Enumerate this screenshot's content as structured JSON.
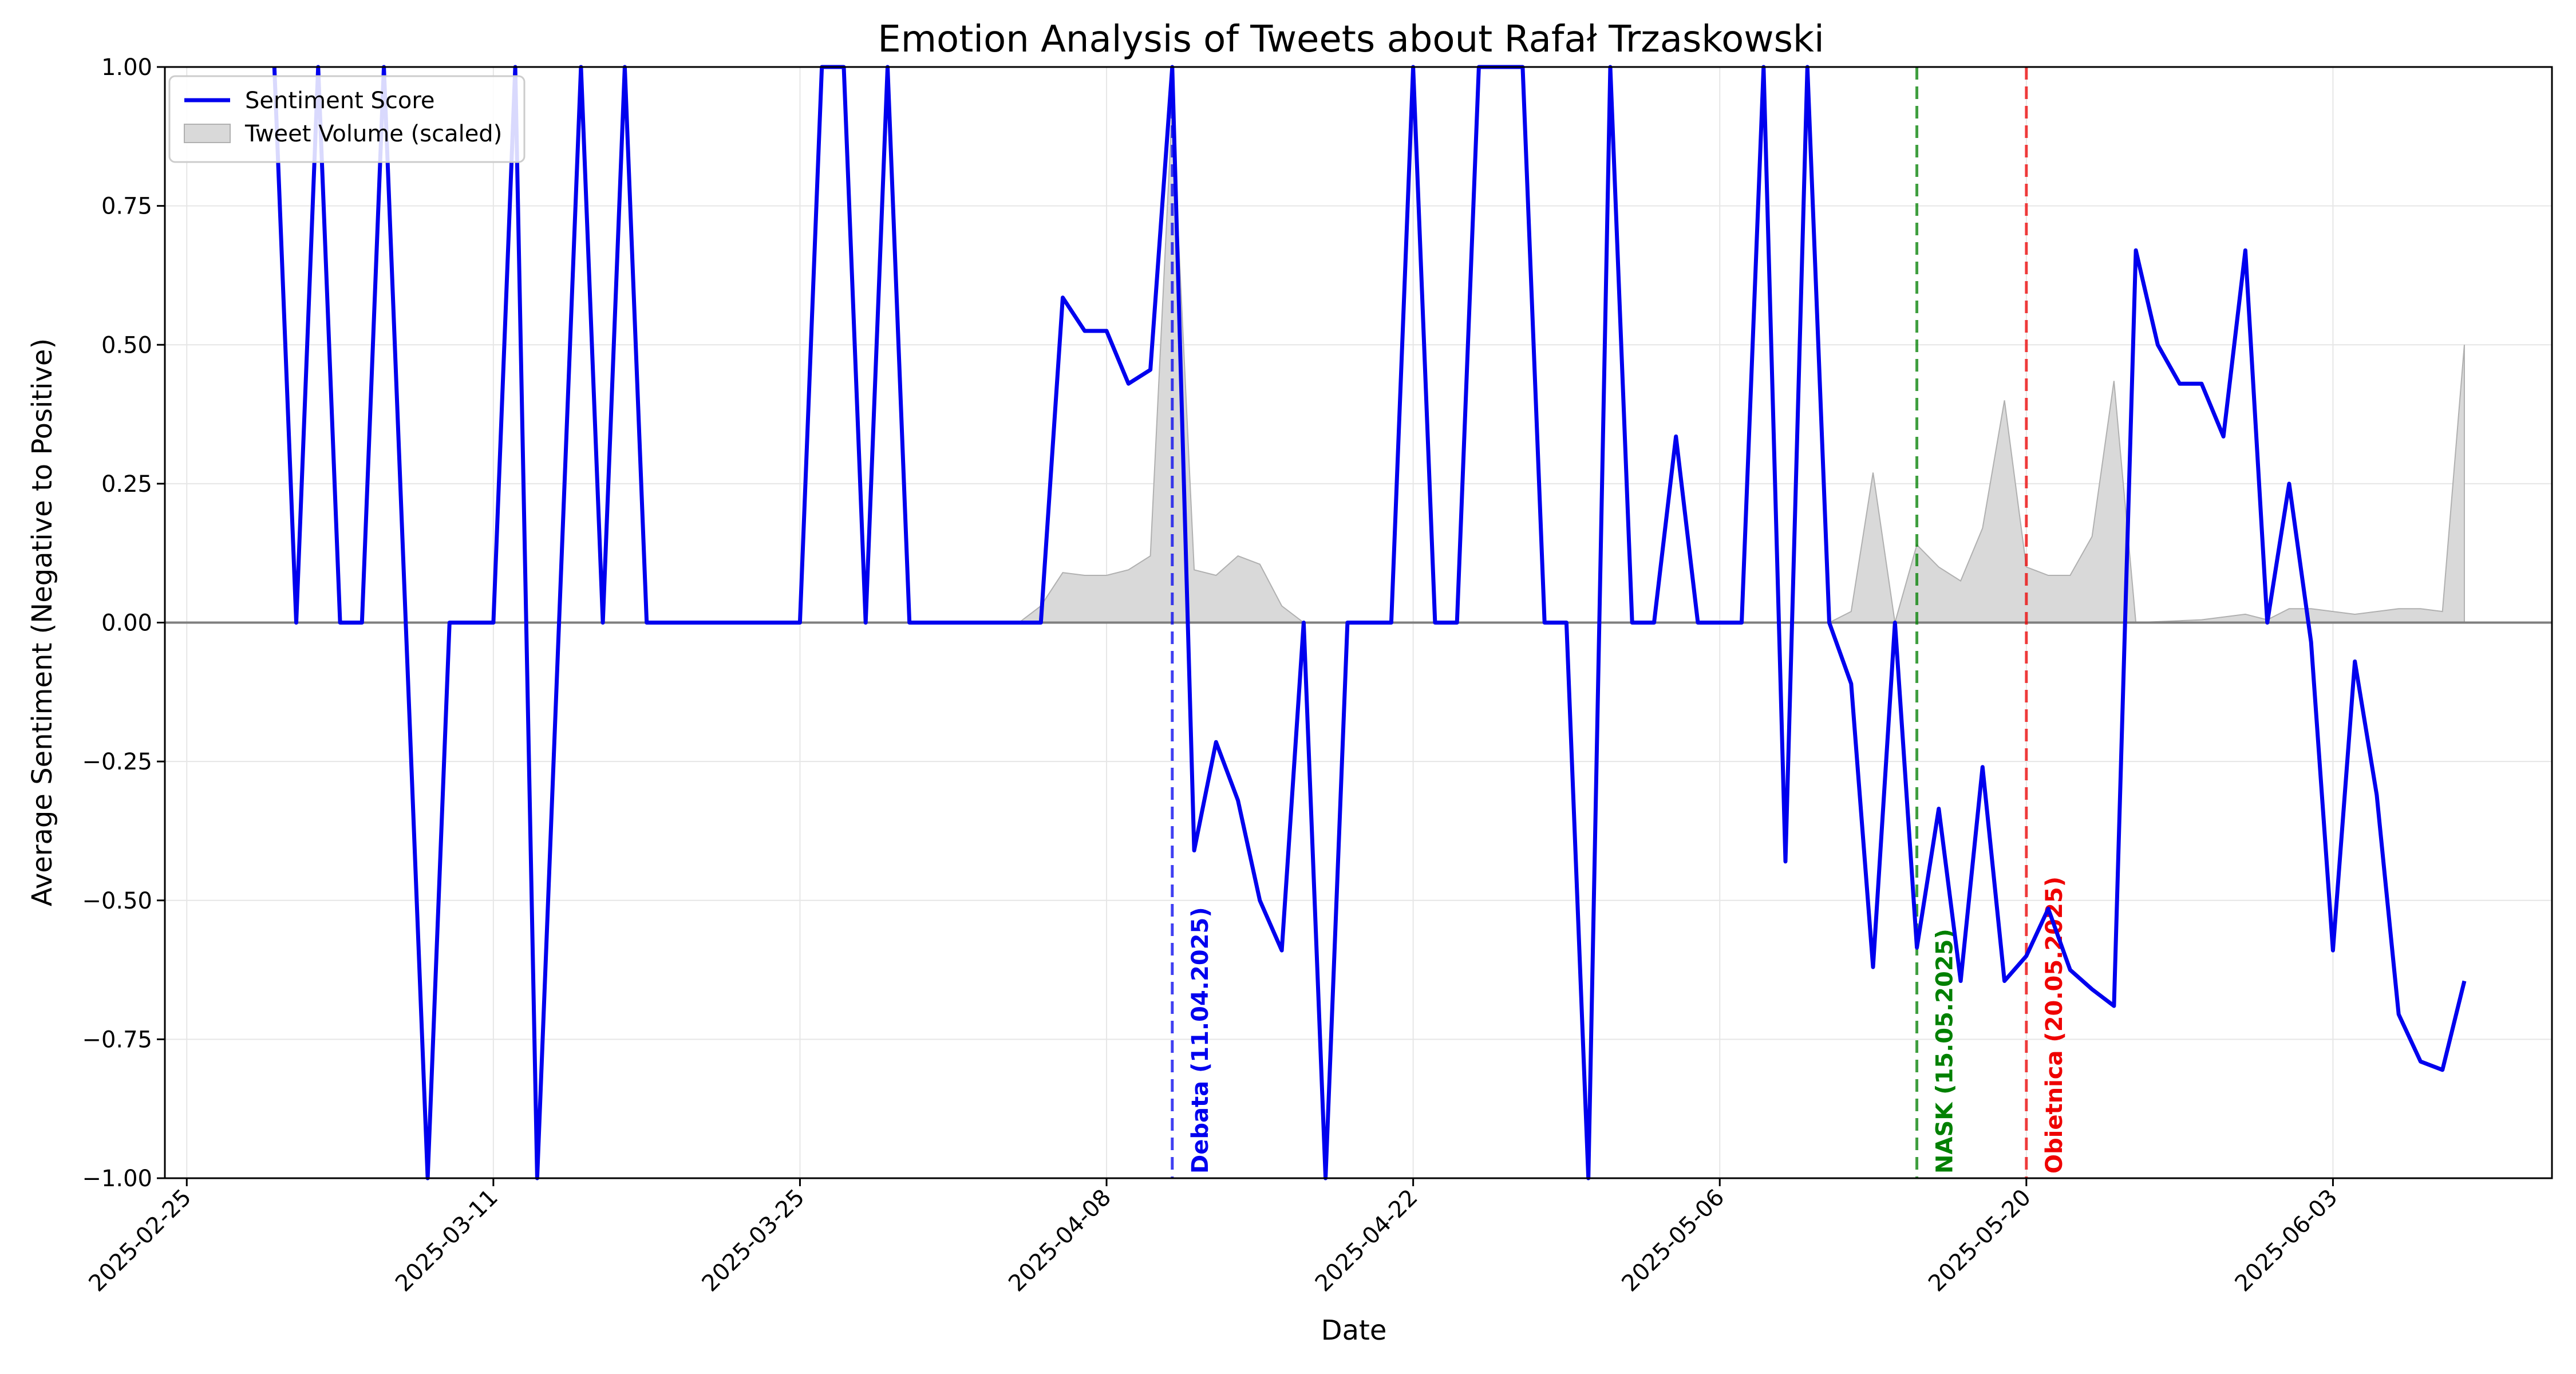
{
  "chart_data": {
    "type": "line",
    "title": "Emotion Analysis of Tweets about Rafał Trzaskowski",
    "xlabel": "Date",
    "ylabel": "Average Sentiment (Negative to Positive)",
    "xlim": [
      "2025-02-24",
      "2025-06-13"
    ],
    "ylim": [
      -1,
      1
    ],
    "grid": true,
    "legend": "top-left",
    "y_ticks": [
      "1.00",
      "0.75",
      "0.50",
      "0.25",
      "0.00",
      "−0.25",
      "−0.50",
      "−0.75",
      "−1.00"
    ],
    "y_tick_values": [
      1,
      0.75,
      0.5,
      0.25,
      0,
      -0.25,
      -0.5,
      -0.75,
      -1
    ],
    "x_ticks": [
      "2025-02-25",
      "2025-03-11",
      "2025-03-25",
      "2025-04-08",
      "2025-04-22",
      "2025-05-06",
      "2025-05-20",
      "2025-06-03"
    ],
    "series": [
      {
        "name": "Sentiment Score",
        "color": "#0000ee",
        "points": [
          [
            "2025-03-01",
            1.0
          ],
          [
            "2025-03-02",
            0.0
          ],
          [
            "2025-03-03",
            1.0
          ],
          [
            "2025-03-04",
            0.0
          ],
          [
            "2025-03-05",
            0.0
          ],
          [
            "2025-03-06",
            1.0
          ],
          [
            "2025-03-07",
            0.0
          ],
          [
            "2025-03-08",
            -1.0
          ],
          [
            "2025-03-09",
            0.0
          ],
          [
            "2025-03-10",
            0.0
          ],
          [
            "2025-03-11",
            0.0
          ],
          [
            "2025-03-12",
            1.0
          ],
          [
            "2025-03-13",
            -1.0
          ],
          [
            "2025-03-14",
            0.0
          ],
          [
            "2025-03-15",
            1.0
          ],
          [
            "2025-03-16",
            0.0
          ],
          [
            "2025-03-17",
            1.0
          ],
          [
            "2025-03-18",
            0.0
          ],
          [
            "2025-03-19",
            0.0
          ],
          [
            "2025-03-20",
            0.0
          ],
          [
            "2025-03-21",
            0.0
          ],
          [
            "2025-03-22",
            0.0
          ],
          [
            "2025-03-23",
            0.0
          ],
          [
            "2025-03-24",
            0.0
          ],
          [
            "2025-03-25",
            0.0
          ],
          [
            "2025-03-26",
            1.0
          ],
          [
            "2025-03-27",
            1.0
          ],
          [
            "2025-03-28",
            0.0
          ],
          [
            "2025-03-29",
            1.0
          ],
          [
            "2025-03-30",
            0.0
          ],
          [
            "2025-03-31",
            0.0
          ],
          [
            "2025-04-01",
            0.0
          ],
          [
            "2025-04-02",
            0.0
          ],
          [
            "2025-04-03",
            0.0
          ],
          [
            "2025-04-04",
            0.0
          ],
          [
            "2025-04-05",
            0.0
          ],
          [
            "2025-04-06",
            0.585
          ],
          [
            "2025-04-07",
            0.525
          ],
          [
            "2025-04-08",
            0.525
          ],
          [
            "2025-04-09",
            0.43
          ],
          [
            "2025-04-10",
            0.455
          ],
          [
            "2025-04-11",
            1.0
          ],
          [
            "2025-04-12",
            -0.41
          ],
          [
            "2025-04-13",
            -0.215
          ],
          [
            "2025-04-14",
            -0.32
          ],
          [
            "2025-04-15",
            -0.5
          ],
          [
            "2025-04-16",
            -0.59
          ],
          [
            "2025-04-17",
            0.0
          ],
          [
            "2025-04-18",
            -1.0
          ],
          [
            "2025-04-19",
            0.0
          ],
          [
            "2025-04-20",
            0.0
          ],
          [
            "2025-04-21",
            0.0
          ],
          [
            "2025-04-22",
            1.0
          ],
          [
            "2025-04-23",
            0.0
          ],
          [
            "2025-04-24",
            0.0
          ],
          [
            "2025-04-25",
            1.0
          ],
          [
            "2025-04-26",
            1.0
          ],
          [
            "2025-04-27",
            1.0
          ],
          [
            "2025-04-28",
            0.0
          ],
          [
            "2025-04-29",
            0.0
          ],
          [
            "2025-04-30",
            -1.0
          ],
          [
            "2025-05-01",
            1.0
          ],
          [
            "2025-05-02",
            0.0
          ],
          [
            "2025-05-03",
            0.0
          ],
          [
            "2025-05-04",
            0.335
          ],
          [
            "2025-05-05",
            0.0
          ],
          [
            "2025-05-06",
            0.0
          ],
          [
            "2025-05-07",
            0.0
          ],
          [
            "2025-05-08",
            1.0
          ],
          [
            "2025-05-09",
            -0.43
          ],
          [
            "2025-05-10",
            1.0
          ],
          [
            "2025-05-11",
            0.0
          ],
          [
            "2025-05-12",
            -0.11
          ],
          [
            "2025-05-13",
            -0.62
          ],
          [
            "2025-05-14",
            0.0
          ],
          [
            "2025-05-15",
            -0.585
          ],
          [
            "2025-05-16",
            -0.335
          ],
          [
            "2025-05-17",
            -0.645
          ],
          [
            "2025-05-18",
            -0.26
          ],
          [
            "2025-05-19",
            -0.645
          ],
          [
            "2025-05-20",
            -0.6
          ],
          [
            "2025-05-21",
            -0.515
          ],
          [
            "2025-05-22",
            -0.625
          ],
          [
            "2025-05-23",
            -0.66
          ],
          [
            "2025-05-24",
            -0.69
          ],
          [
            "2025-05-25",
            0.67
          ],
          [
            "2025-05-26",
            0.5
          ],
          [
            "2025-05-27",
            0.43
          ],
          [
            "2025-05-28",
            0.43
          ],
          [
            "2025-05-29",
            0.335
          ],
          [
            "2025-05-30",
            0.67
          ],
          [
            "2025-05-31",
            0.0
          ],
          [
            "2025-06-01",
            0.25
          ],
          [
            "2025-06-02",
            -0.035
          ],
          [
            "2025-06-03",
            -0.59
          ],
          [
            "2025-06-04",
            -0.07
          ],
          [
            "2025-06-05",
            -0.31
          ],
          [
            "2025-06-06",
            -0.705
          ],
          [
            "2025-06-07",
            -0.79
          ],
          [
            "2025-06-08",
            -0.805
          ],
          [
            "2025-06-09",
            -0.645
          ]
        ]
      },
      {
        "name": "Tweet Volume (scaled)",
        "type": "area",
        "color": "#bbbbbb",
        "points": [
          [
            "2025-03-01",
            0.0
          ],
          [
            "2025-04-04",
            0.0
          ],
          [
            "2025-04-05",
            0.03
          ],
          [
            "2025-04-06",
            0.09
          ],
          [
            "2025-04-07",
            0.085
          ],
          [
            "2025-04-08",
            0.085
          ],
          [
            "2025-04-09",
            0.095
          ],
          [
            "2025-04-10",
            0.12
          ],
          [
            "2025-04-11",
            0.93
          ],
          [
            "2025-04-12",
            0.095
          ],
          [
            "2025-04-13",
            0.085
          ],
          [
            "2025-04-14",
            0.12
          ],
          [
            "2025-04-15",
            0.105
          ],
          [
            "2025-04-16",
            0.03
          ],
          [
            "2025-04-17",
            0.0
          ],
          [
            "2025-05-11",
            0.0
          ],
          [
            "2025-05-12",
            0.02
          ],
          [
            "2025-05-13",
            0.27
          ],
          [
            "2025-05-14",
            0.0
          ],
          [
            "2025-05-15",
            0.14
          ],
          [
            "2025-05-16",
            0.1
          ],
          [
            "2025-05-17",
            0.075
          ],
          [
            "2025-05-18",
            0.17
          ],
          [
            "2025-05-19",
            0.4
          ],
          [
            "2025-05-20",
            0.1
          ],
          [
            "2025-05-21",
            0.085
          ],
          [
            "2025-05-22",
            0.085
          ],
          [
            "2025-05-23",
            0.155
          ],
          [
            "2025-05-24",
            0.435
          ],
          [
            "2025-05-25",
            0.0
          ],
          [
            "2025-05-28",
            0.005
          ],
          [
            "2025-05-30",
            0.015
          ],
          [
            "2025-05-31",
            0.005
          ],
          [
            "2025-06-01",
            0.025
          ],
          [
            "2025-06-02",
            0.025
          ],
          [
            "2025-06-03",
            0.02
          ],
          [
            "2025-06-04",
            0.015
          ],
          [
            "2025-06-05",
            0.02
          ],
          [
            "2025-06-06",
            0.025
          ],
          [
            "2025-06-07",
            0.025
          ],
          [
            "2025-06-08",
            0.02
          ],
          [
            "2025-06-09",
            0.5
          ]
        ]
      }
    ],
    "events": [
      {
        "date": "2025-04-11",
        "label": "Debata (11.04.2025)",
        "color": "#0000ee"
      },
      {
        "date": "2025-05-15",
        "label": "NASK (15.05.2025)",
        "color": "#008000"
      },
      {
        "date": "2025-05-20",
        "label": "Obietnica (20.05.2025)",
        "color": "#ee0000"
      }
    ]
  }
}
